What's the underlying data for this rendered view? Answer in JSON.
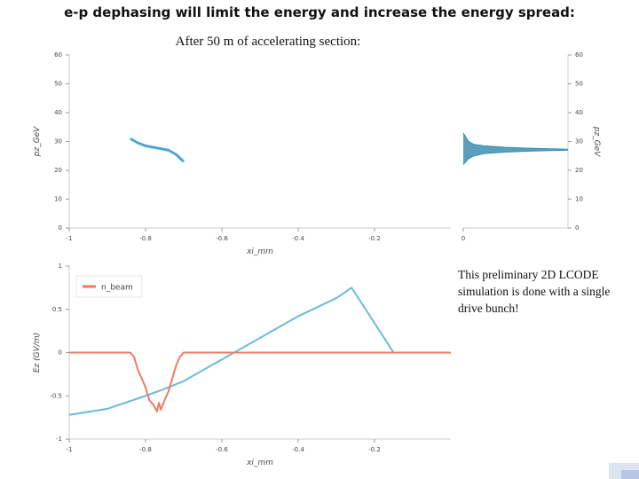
{
  "title": "e-p dephasing will limit the energy and increase the energy spread:",
  "subtitle": "After 50 m of accelerating section:",
  "note": "This preliminary 2D LCODE simulation is done with a single drive bunch!",
  "chart_data": [
    {
      "type": "line",
      "xlabel": "xi_mm",
      "ylabel": "pz_GeV",
      "xlim": [
        -1,
        0
      ],
      "xticks": [
        -1,
        -0.8,
        -0.6,
        -0.4,
        -0.2
      ],
      "ylim": [
        0,
        60
      ],
      "yticks": [
        0,
        10,
        20,
        30,
        40,
        50,
        60
      ],
      "y_axis_side": "left",
      "series": [
        {
          "color": "#4aa8cf",
          "width": 3,
          "x": [
            -0.84,
            -0.82,
            -0.8,
            -0.78,
            -0.76,
            -0.74,
            -0.72,
            -0.7
          ],
          "values": [
            31,
            29.5,
            28.5,
            28,
            27.5,
            27,
            25.5,
            23
          ]
        }
      ]
    },
    {
      "type": "range-area",
      "ylabel": "pz_GeV",
      "xlim": [
        0,
        1
      ],
      "xticks": [
        0
      ],
      "ylim": [
        0,
        60
      ],
      "yticks": [
        0,
        10,
        20,
        30,
        40,
        50,
        60
      ],
      "y_axis_side": "right",
      "color": "#3b8fb0",
      "x": [
        0,
        0.05,
        0.1,
        0.2,
        0.4,
        0.6,
        0.8,
        1
      ],
      "upper": [
        33,
        30,
        29,
        28.5,
        28,
        27.7,
        27.5,
        27.3
      ],
      "lower": [
        22,
        24,
        25,
        25.8,
        26.3,
        26.6,
        26.8,
        27
      ]
    },
    {
      "type": "line",
      "xlabel": "xi_mm",
      "ylabel": "Ez (GV/m)",
      "xlim": [
        -1,
        0
      ],
      "xticks": [
        -1,
        -0.8,
        -0.6,
        -0.4,
        -0.2
      ],
      "ylim": [
        -1,
        1
      ],
      "yticks": [
        -1,
        -0.5,
        0,
        0.5,
        1
      ],
      "y_axis_side": "left",
      "legend": "top-left",
      "series": [
        {
          "color": "#6bbbd6",
          "width": 2,
          "x": [
            -1,
            -0.9,
            -0.8,
            -0.75,
            -0.7,
            -0.6,
            -0.4,
            -0.3,
            -0.26,
            -0.15,
            0
          ],
          "values": [
            -0.72,
            -0.65,
            -0.5,
            -0.42,
            -0.33,
            -0.08,
            0.42,
            0.63,
            0.75,
            0,
            0
          ]
        },
        {
          "name": "n_beam",
          "color": "#ee7b63",
          "width": 2,
          "x": [
            -1,
            -0.84,
            -0.83,
            -0.82,
            -0.81,
            -0.8,
            -0.79,
            -0.78,
            -0.77,
            -0.765,
            -0.76,
            -0.75,
            -0.74,
            -0.73,
            -0.72,
            -0.71,
            -0.7,
            0
          ],
          "values": [
            0,
            0,
            -0.05,
            -0.2,
            -0.3,
            -0.4,
            -0.55,
            -0.6,
            -0.68,
            -0.58,
            -0.66,
            -0.55,
            -0.45,
            -0.3,
            -0.15,
            -0.05,
            0,
            0
          ]
        }
      ]
    }
  ]
}
